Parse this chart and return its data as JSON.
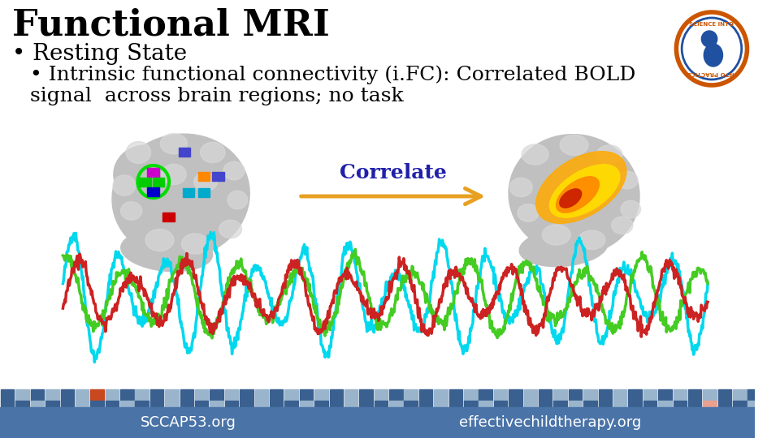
{
  "title": "Functional MRI",
  "bullet1": "Resting State",
  "bullet2": "Intrinsic functional connectivity (i.FC): Correlated BOLD\nsignal  across brain regions; no task",
  "correlate_label": "Correlate",
  "footer_left": "SCCAP53.org",
  "footer_right": "effectivechildtherapy.org",
  "background_color": "#ffffff",
  "footer_bg_color": "#4a74a8",
  "footer_text_color": "#ffffff",
  "title_color": "#000000",
  "bullet_color": "#000000",
  "correlate_color": "#2020aa",
  "arrow_color": "#e8a020",
  "wave_colors": [
    "#00d8ee",
    "#44cc22",
    "#cc2222"
  ],
  "title_fontsize": 32,
  "bullet1_fontsize": 20,
  "bullet2_fontsize": 18,
  "footer_fontsize": 13,
  "ticker_dark": "#3a6090",
  "ticker_light": "#9ab4cc",
  "ticker_orange": "#c84820",
  "ticker_peach": "#e8a090",
  "brain_gray": "#c0c0c0",
  "brain_light": "#d8d8d8",
  "logo_orange": "#cc5500",
  "logo_blue": "#2050a0"
}
